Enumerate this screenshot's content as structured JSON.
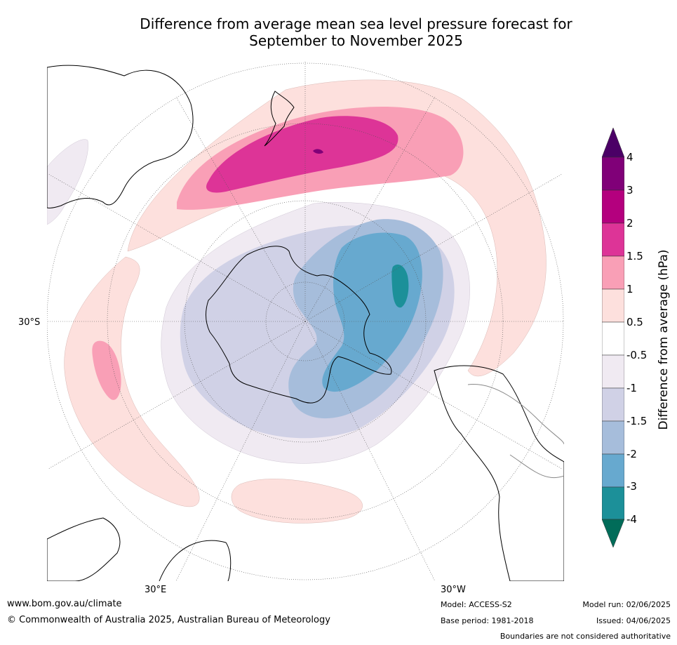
{
  "title": {
    "line1": "Difference from average mean sea level pressure forecast for",
    "line2": "September to November 2025"
  },
  "map": {
    "projection": "south-polar-stereographic",
    "lat_labels": [
      "30°S"
    ],
    "lon_labels": [
      "30°E",
      "30°W"
    ]
  },
  "colorbar": {
    "title": "Difference from average (hPa)",
    "tick_labels": [
      "4",
      "3",
      "2",
      "1.5",
      "1",
      "0.5",
      "-0.5",
      "-1",
      "-1.5",
      "-2",
      "-3",
      "-4"
    ],
    "bins": [
      {
        "range": ">4",
        "color": "#4b0066"
      },
      {
        "range": "3 to 4",
        "color": "#800078"
      },
      {
        "range": "2 to 3",
        "color": "#b4007e"
      },
      {
        "range": "1.5 to 2",
        "color": "#dd3497"
      },
      {
        "range": "1 to 1.5",
        "color": "#f99fb6"
      },
      {
        "range": "0.5 to 1",
        "color": "#fde0dd"
      },
      {
        "range": "-0.5 to 0.5",
        "color": "#ffffff"
      },
      {
        "range": "-1 to -0.5",
        "color": "#f0eaf2"
      },
      {
        "range": "-1.5 to -1",
        "color": "#d0d1e6"
      },
      {
        "range": "-2 to -1.5",
        "color": "#a6bddb"
      },
      {
        "range": "-3 to -2",
        "color": "#67a9cf"
      },
      {
        "range": "-4 to -3",
        "color": "#1c9099"
      },
      {
        "range": "<-4",
        "color": "#016c59"
      }
    ]
  },
  "footer": {
    "url": "www.bom.gov.au/climate",
    "copyright": "© Commonwealth of Australia 2025, Australian Bureau of Meteorology",
    "model": "Model: ACCESS-S2",
    "base_period": "Base period: 1981-2018",
    "model_run": "Model run: 02/06/2025",
    "issued": "Issued: 04/06/2025",
    "disclaimer": "Boundaries are not considered authoritative"
  }
}
